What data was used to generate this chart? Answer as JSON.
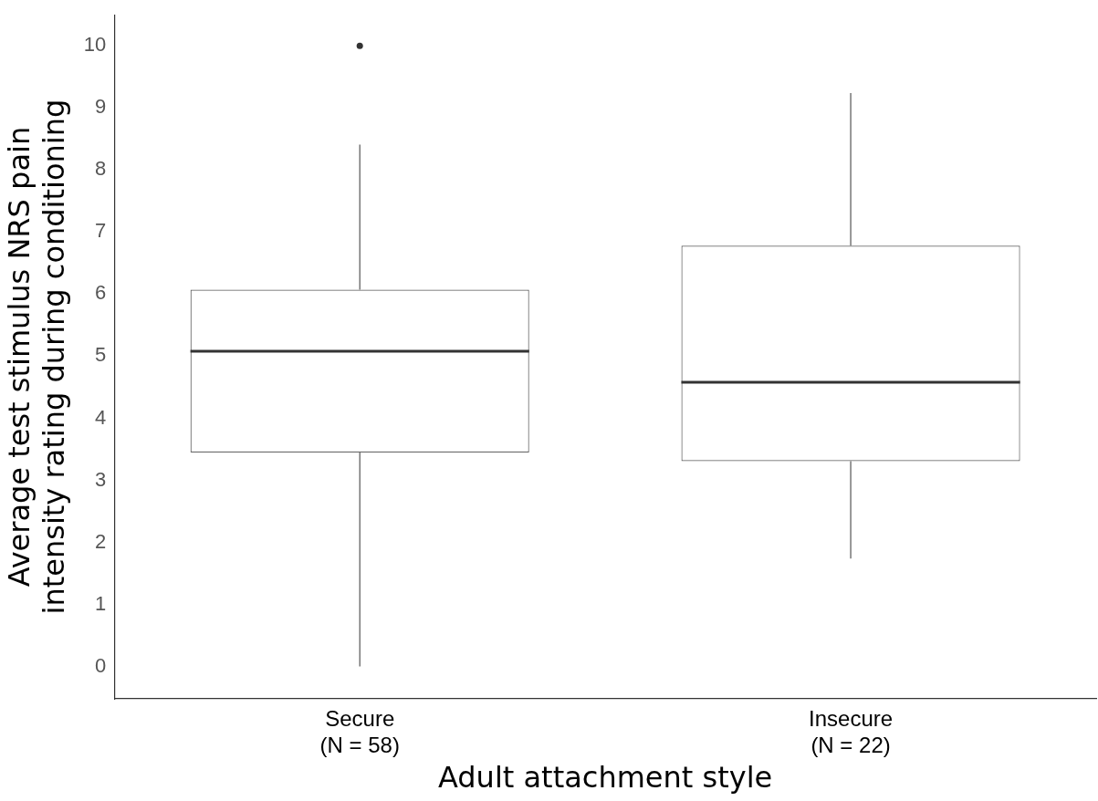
{
  "chart_data": {
    "type": "box",
    "xlabel": "Adult attachment style",
    "ylabel": "Average test stimulus NRS pain\nintensity rating during conditioning",
    "categories": [
      "Secure\n(N = 58)",
      "Insecure\n(N = 22)"
    ],
    "boxes": [
      {
        "low": 0,
        "q1": 3.45,
        "median": 5.08,
        "q3": 6.07,
        "high": 8.41,
        "outliers": [
          10
        ]
      },
      {
        "low": 1.74,
        "q1": 3.31,
        "median": 4.58,
        "q3": 6.78,
        "high": 9.24
      }
    ],
    "ylim": [
      -0.52,
      10.5
    ],
    "yticks": [
      0,
      1,
      2,
      3,
      4,
      5,
      6,
      7,
      8,
      9,
      10
    ],
    "grid": false,
    "legend": false
  }
}
